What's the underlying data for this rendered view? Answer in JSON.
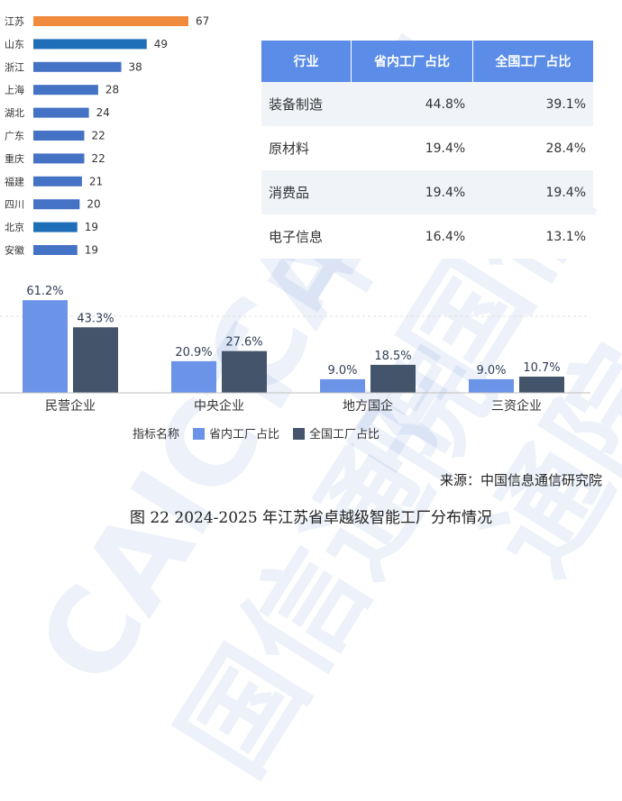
{
  "watermark": "CAICT 中国信通院",
  "chart_data": [
    {
      "type": "bar",
      "orientation": "horizontal",
      "categories": [
        "江苏",
        "山东",
        "浙江",
        "上海",
        "湖北",
        "广东",
        "重庆",
        "福建",
        "四川",
        "北京",
        "安徽"
      ],
      "values": [
        67,
        49,
        38,
        28,
        24,
        22,
        22,
        21,
        20,
        19,
        19
      ],
      "colors": [
        "#f08a3c",
        "#1f6fb8",
        "#4472c4",
        "#4472c4",
        "#4472c4",
        "#4472c4",
        "#4472c4",
        "#4472c4",
        "#4472c4",
        "#1f6fb8",
        "#4472c4"
      ],
      "xlim": [
        0,
        75
      ]
    },
    {
      "type": "table",
      "headers": [
        "行业",
        "省内工厂占比",
        "全国工厂占比"
      ],
      "rows": [
        [
          "装备制造",
          "44.8%",
          "39.1%"
        ],
        [
          "原材料",
          "19.4%",
          "28.4%"
        ],
        [
          "消费品",
          "19.4%",
          "19.4%"
        ],
        [
          "电子信息",
          "16.4%",
          "13.1%"
        ]
      ]
    },
    {
      "type": "bar",
      "orientation": "vertical",
      "categories": [
        "民营企业",
        "中央企业",
        "地方国企",
        "三资企业"
      ],
      "series": [
        {
          "name": "省内工厂占比",
          "values": [
            61.2,
            20.9,
            9.0,
            9.0
          ],
          "labels": [
            "61.2%",
            "20.9%",
            "9.0%",
            "9.0%"
          ],
          "color": "#6b93e8"
        },
        {
          "name": "全国工厂占比",
          "values": [
            43.3,
            27.6,
            18.5,
            10.7
          ],
          "labels": [
            "43.3%",
            "27.6%",
            "18.5%",
            "10.7%"
          ],
          "color": "#44546a"
        }
      ],
      "legend_title": "指标名称",
      "legend_placement": "bottom-center",
      "ylim": [
        0,
        70
      ],
      "grid": true
    }
  ],
  "source": "来源：中国信息通信研究院",
  "caption": "图 22 2024-2025 年江苏省卓越级智能工厂分布情况"
}
